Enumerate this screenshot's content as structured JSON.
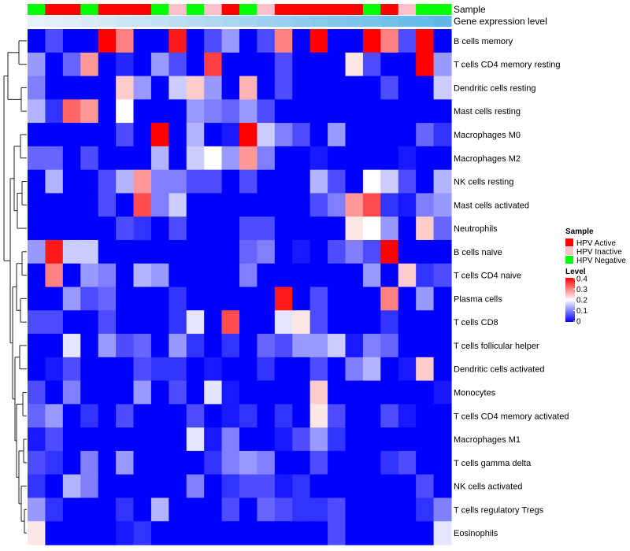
{
  "chart_data": {
    "type": "heatmap",
    "annotation_tracks": [
      {
        "name": "Sample",
        "values": [
          "HPV Negative",
          "HPV Active",
          "HPV Active",
          "HPV Negative",
          "HPV Active",
          "HPV Active",
          "HPV Active",
          "HPV Negative",
          "HPV Inactive",
          "HPV Negative",
          "HPV Inactive",
          "HPV Active",
          "HPV Negative",
          "HPV Inactive",
          "HPV Active",
          "HPV Active",
          "HPV Active",
          "HPV Active",
          "HPV Active",
          "HPV Negative",
          "HPV Active",
          "HPV Inactive",
          "HPV Negative",
          "HPV Negative"
        ]
      },
      {
        "name": "Gene expression level",
        "values": [
          0.0,
          0.01,
          0.02,
          0.04,
          0.06,
          0.08,
          0.1,
          0.12,
          0.14,
          0.16,
          0.18,
          0.2,
          0.22,
          0.24,
          0.26,
          0.28,
          0.3,
          0.32,
          0.34,
          0.36,
          0.38,
          0.4,
          0.42,
          0.44
        ]
      }
    ],
    "rows": [
      "B cells memory",
      "T cells CD4 memory resting",
      "Dendritic cells resting",
      "Mast cells resting",
      "Macrophages M0",
      "Macrophages M2",
      "NK cells resting",
      "Mast cells activated",
      "Neutrophils",
      "B cells naive",
      "T cells CD4 naive",
      "Plasma cells",
      "T cells CD8",
      "T cells follicular helper",
      "Dendritic cells activated",
      "Monocytes",
      "T cells CD4 memory activated",
      "Macrophages M1",
      "T cells gamma delta",
      "NK cells activated",
      "T cells regulatory  Tregs",
      "Eosinophils"
    ],
    "values": [
      [
        0.0,
        0.06,
        0.0,
        0.0,
        0.4,
        0.3,
        0.0,
        0.0,
        0.38,
        0.0,
        0.06,
        0.12,
        0.0,
        0.06,
        0.3,
        0.0,
        0.4,
        0.0,
        0.0,
        0.4,
        0.3,
        0.06,
        0.4,
        0.0
      ],
      [
        0.12,
        0.0,
        0.08,
        0.28,
        0.0,
        0.03,
        0.0,
        0.12,
        0.06,
        0.0,
        0.35,
        0.0,
        0.0,
        0.0,
        0.06,
        0.0,
        0.0,
        0.0,
        0.22,
        0.06,
        0.0,
        0.0,
        0.4,
        0.12
      ],
      [
        0.1,
        0.0,
        0.0,
        0.0,
        0.0,
        0.24,
        0.12,
        0.0,
        0.16,
        0.24,
        0.12,
        0.0,
        0.26,
        0.0,
        0.06,
        0.0,
        0.0,
        0.0,
        0.0,
        0.0,
        0.06,
        0.0,
        0.0,
        0.16
      ],
      [
        0.14,
        0.04,
        0.32,
        0.28,
        0.0,
        0.2,
        0.0,
        0.0,
        0.0,
        0.12,
        0.1,
        0.08,
        0.12,
        0.06,
        0.0,
        0.0,
        0.0,
        0.0,
        0.0,
        0.0,
        0.0,
        0.0,
        0.0,
        0.0
      ],
      [
        0.0,
        0.0,
        0.0,
        0.0,
        0.0,
        0.06,
        0.0,
        0.4,
        0.0,
        0.14,
        0.0,
        0.02,
        0.4,
        0.16,
        0.1,
        0.06,
        0.0,
        0.12,
        0.0,
        0.0,
        0.0,
        0.0,
        0.08,
        0.04
      ],
      [
        0.08,
        0.08,
        0.0,
        0.06,
        0.0,
        0.0,
        0.0,
        0.14,
        0.0,
        0.16,
        0.2,
        0.12,
        0.28,
        0.1,
        0.0,
        0.0,
        0.02,
        0.0,
        0.0,
        0.0,
        0.0,
        0.02,
        0.0,
        0.0
      ],
      [
        0.0,
        0.14,
        0.0,
        0.0,
        0.06,
        0.14,
        0.28,
        0.1,
        0.1,
        0.06,
        0.06,
        0.0,
        0.06,
        0.0,
        0.0,
        0.0,
        0.14,
        0.06,
        0.0,
        0.2,
        0.16,
        0.06,
        0.0,
        0.14
      ],
      [
        0.0,
        0.0,
        0.0,
        0.0,
        0.06,
        0.0,
        0.34,
        0.1,
        0.16,
        0.0,
        0.0,
        0.0,
        0.0,
        0.0,
        0.0,
        0.0,
        0.06,
        0.1,
        0.28,
        0.34,
        0.04,
        0.02,
        0.1,
        0.12
      ],
      [
        0.0,
        0.0,
        0.0,
        0.0,
        0.0,
        0.06,
        0.04,
        0.0,
        0.06,
        0.0,
        0.0,
        0.0,
        0.06,
        0.06,
        0.0,
        0.0,
        0.0,
        0.0,
        0.22,
        0.2,
        0.12,
        0.0,
        0.24,
        0.08
      ],
      [
        0.12,
        0.38,
        0.16,
        0.16,
        0.0,
        0.0,
        0.0,
        0.0,
        0.0,
        0.0,
        0.0,
        0.0,
        0.08,
        0.1,
        0.0,
        0.02,
        0.0,
        0.06,
        0.1,
        0.06,
        0.4,
        0.0,
        0.0,
        0.0
      ],
      [
        0.0,
        0.3,
        0.0,
        0.12,
        0.1,
        0.0,
        0.14,
        0.12,
        0.0,
        0.0,
        0.0,
        0.0,
        0.1,
        0.0,
        0.0,
        0.0,
        0.0,
        0.0,
        0.0,
        0.12,
        0.0,
        0.24,
        0.04,
        0.06
      ],
      [
        0.0,
        0.0,
        0.12,
        0.06,
        0.08,
        0.0,
        0.0,
        0.0,
        0.04,
        0.0,
        0.0,
        0.0,
        0.0,
        0.0,
        0.38,
        0.0,
        0.06,
        0.0,
        0.0,
        0.0,
        0.3,
        0.0,
        0.12,
        0.0
      ],
      [
        0.06,
        0.06,
        0.0,
        0.0,
        0.06,
        0.0,
        0.0,
        0.0,
        0.04,
        0.18,
        0.0,
        0.34,
        0.0,
        0.0,
        0.18,
        0.22,
        0.06,
        0.0,
        0.0,
        0.0,
        0.04,
        0.0,
        0.0,
        0.0
      ],
      [
        0.0,
        0.0,
        0.18,
        0.0,
        0.12,
        0.06,
        0.08,
        0.0,
        0.12,
        0.04,
        0.0,
        0.04,
        0.0,
        0.08,
        0.06,
        0.12,
        0.12,
        0.16,
        0.02,
        0.1,
        0.08,
        0.0,
        0.0,
        0.0
      ],
      [
        0.0,
        0.02,
        0.06,
        0.0,
        0.0,
        0.0,
        0.06,
        0.04,
        0.04,
        0.0,
        0.02,
        0.0,
        0.0,
        0.04,
        0.0,
        0.0,
        0.06,
        0.0,
        0.1,
        0.14,
        0.0,
        0.02,
        0.24,
        0.0
      ],
      [
        0.06,
        0.0,
        0.1,
        0.0,
        0.0,
        0.0,
        0.12,
        0.0,
        0.06,
        0.0,
        0.18,
        0.02,
        0.0,
        0.0,
        0.0,
        0.0,
        0.24,
        0.0,
        0.0,
        0.0,
        0.0,
        0.0,
        0.0,
        0.02
      ],
      [
        0.08,
        0.12,
        0.0,
        0.04,
        0.0,
        0.06,
        0.0,
        0.0,
        0.0,
        0.06,
        0.0,
        0.02,
        0.04,
        0.0,
        0.04,
        0.0,
        0.22,
        0.06,
        0.0,
        0.0,
        0.06,
        0.02,
        0.0,
        0.0
      ],
      [
        0.02,
        0.06,
        0.0,
        0.0,
        0.0,
        0.0,
        0.0,
        0.0,
        0.0,
        0.18,
        0.02,
        0.1,
        0.0,
        0.0,
        0.02,
        0.06,
        0.12,
        0.04,
        0.0,
        0.0,
        0.0,
        0.0,
        0.0,
        0.0
      ],
      [
        0.06,
        0.04,
        0.0,
        0.1,
        0.0,
        0.12,
        0.0,
        0.0,
        0.0,
        0.0,
        0.04,
        0.1,
        0.12,
        0.1,
        0.0,
        0.0,
        0.06,
        0.0,
        0.0,
        0.0,
        0.04,
        0.06,
        0.0,
        0.0
      ],
      [
        0.04,
        0.0,
        0.14,
        0.1,
        0.0,
        0.0,
        0.0,
        0.0,
        0.0,
        0.1,
        0.0,
        0.04,
        0.06,
        0.06,
        0.02,
        0.04,
        0.0,
        0.0,
        0.0,
        0.0,
        0.0,
        0.0,
        0.06,
        0.0
      ],
      [
        0.12,
        0.04,
        0.0,
        0.0,
        0.0,
        0.04,
        0.0,
        0.14,
        0.0,
        0.0,
        0.0,
        0.06,
        0.0,
        0.08,
        0.06,
        0.04,
        0.04,
        0.06,
        0.0,
        0.0,
        0.0,
        0.0,
        0.04,
        0.1
      ],
      [
        0.22,
        0.0,
        0.0,
        0.0,
        0.0,
        0.02,
        0.04,
        0.0,
        0.0,
        0.0,
        0.0,
        0.0,
        0.0,
        0.0,
        0.0,
        0.0,
        0.0,
        0.06,
        0.0,
        0.0,
        0.0,
        0.0,
        0.0,
        0.18
      ]
    ],
    "color_scale": {
      "min": 0,
      "max": 0.4,
      "low": "#0000ff",
      "mid": "#ffffff",
      "high": "#ff0000"
    },
    "legend": {
      "placement": "right",
      "sample_title": "Sample",
      "sample_entries": [
        {
          "label": "HPV Active",
          "color": "#ff0000"
        },
        {
          "label": "HPV Inactive",
          "color": "#ffc0cb"
        },
        {
          "label": "HPV Negative",
          "color": "#00ff00"
        }
      ],
      "level_title": "Level",
      "level_ticks": [
        "0",
        "0.1",
        "0.2",
        "0.3",
        "0.4"
      ]
    },
    "expression_track_colors": {
      "low": "#e6f0f8",
      "high": "#5fb8e8"
    }
  }
}
